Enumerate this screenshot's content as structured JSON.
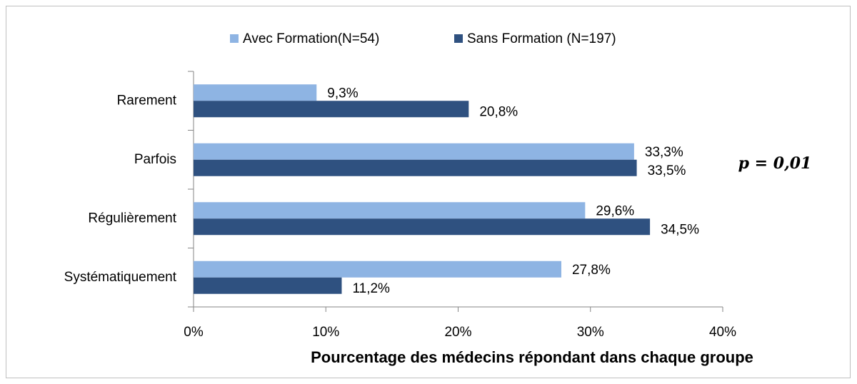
{
  "chart_data": {
    "type": "bar",
    "orientation": "horizontal",
    "categories": [
      "Rarement",
      "Parfois",
      "Régulièrement",
      "Systématiquement"
    ],
    "series": [
      {
        "name": "Avec Formation(N=54)",
        "color": "#8eb4e3",
        "values": [
          9.3,
          33.3,
          29.6,
          27.8
        ],
        "value_labels": [
          "9,3%",
          "33,3%",
          "29,6%",
          "27,8%"
        ]
      },
      {
        "name": "Sans Formation (N=197)",
        "color": "#2f5180",
        "values": [
          20.8,
          33.5,
          34.5,
          11.2
        ],
        "value_labels": [
          "20,8%",
          "33,5%",
          "34,5%",
          "11,2%"
        ]
      }
    ],
    "xlim": [
      0,
      40
    ],
    "xticks": [
      {
        "value": 0,
        "label": "0%"
      },
      {
        "value": 10,
        "label": "10%"
      },
      {
        "value": 20,
        "label": "20%"
      },
      {
        "value": 30,
        "label": "30%"
      },
      {
        "value": 40,
        "label": "40%"
      }
    ],
    "xlabel": "Pourcentage des médecins répondant dans chaque groupe",
    "annotation": "p = 0,01",
    "legend": "top"
  }
}
